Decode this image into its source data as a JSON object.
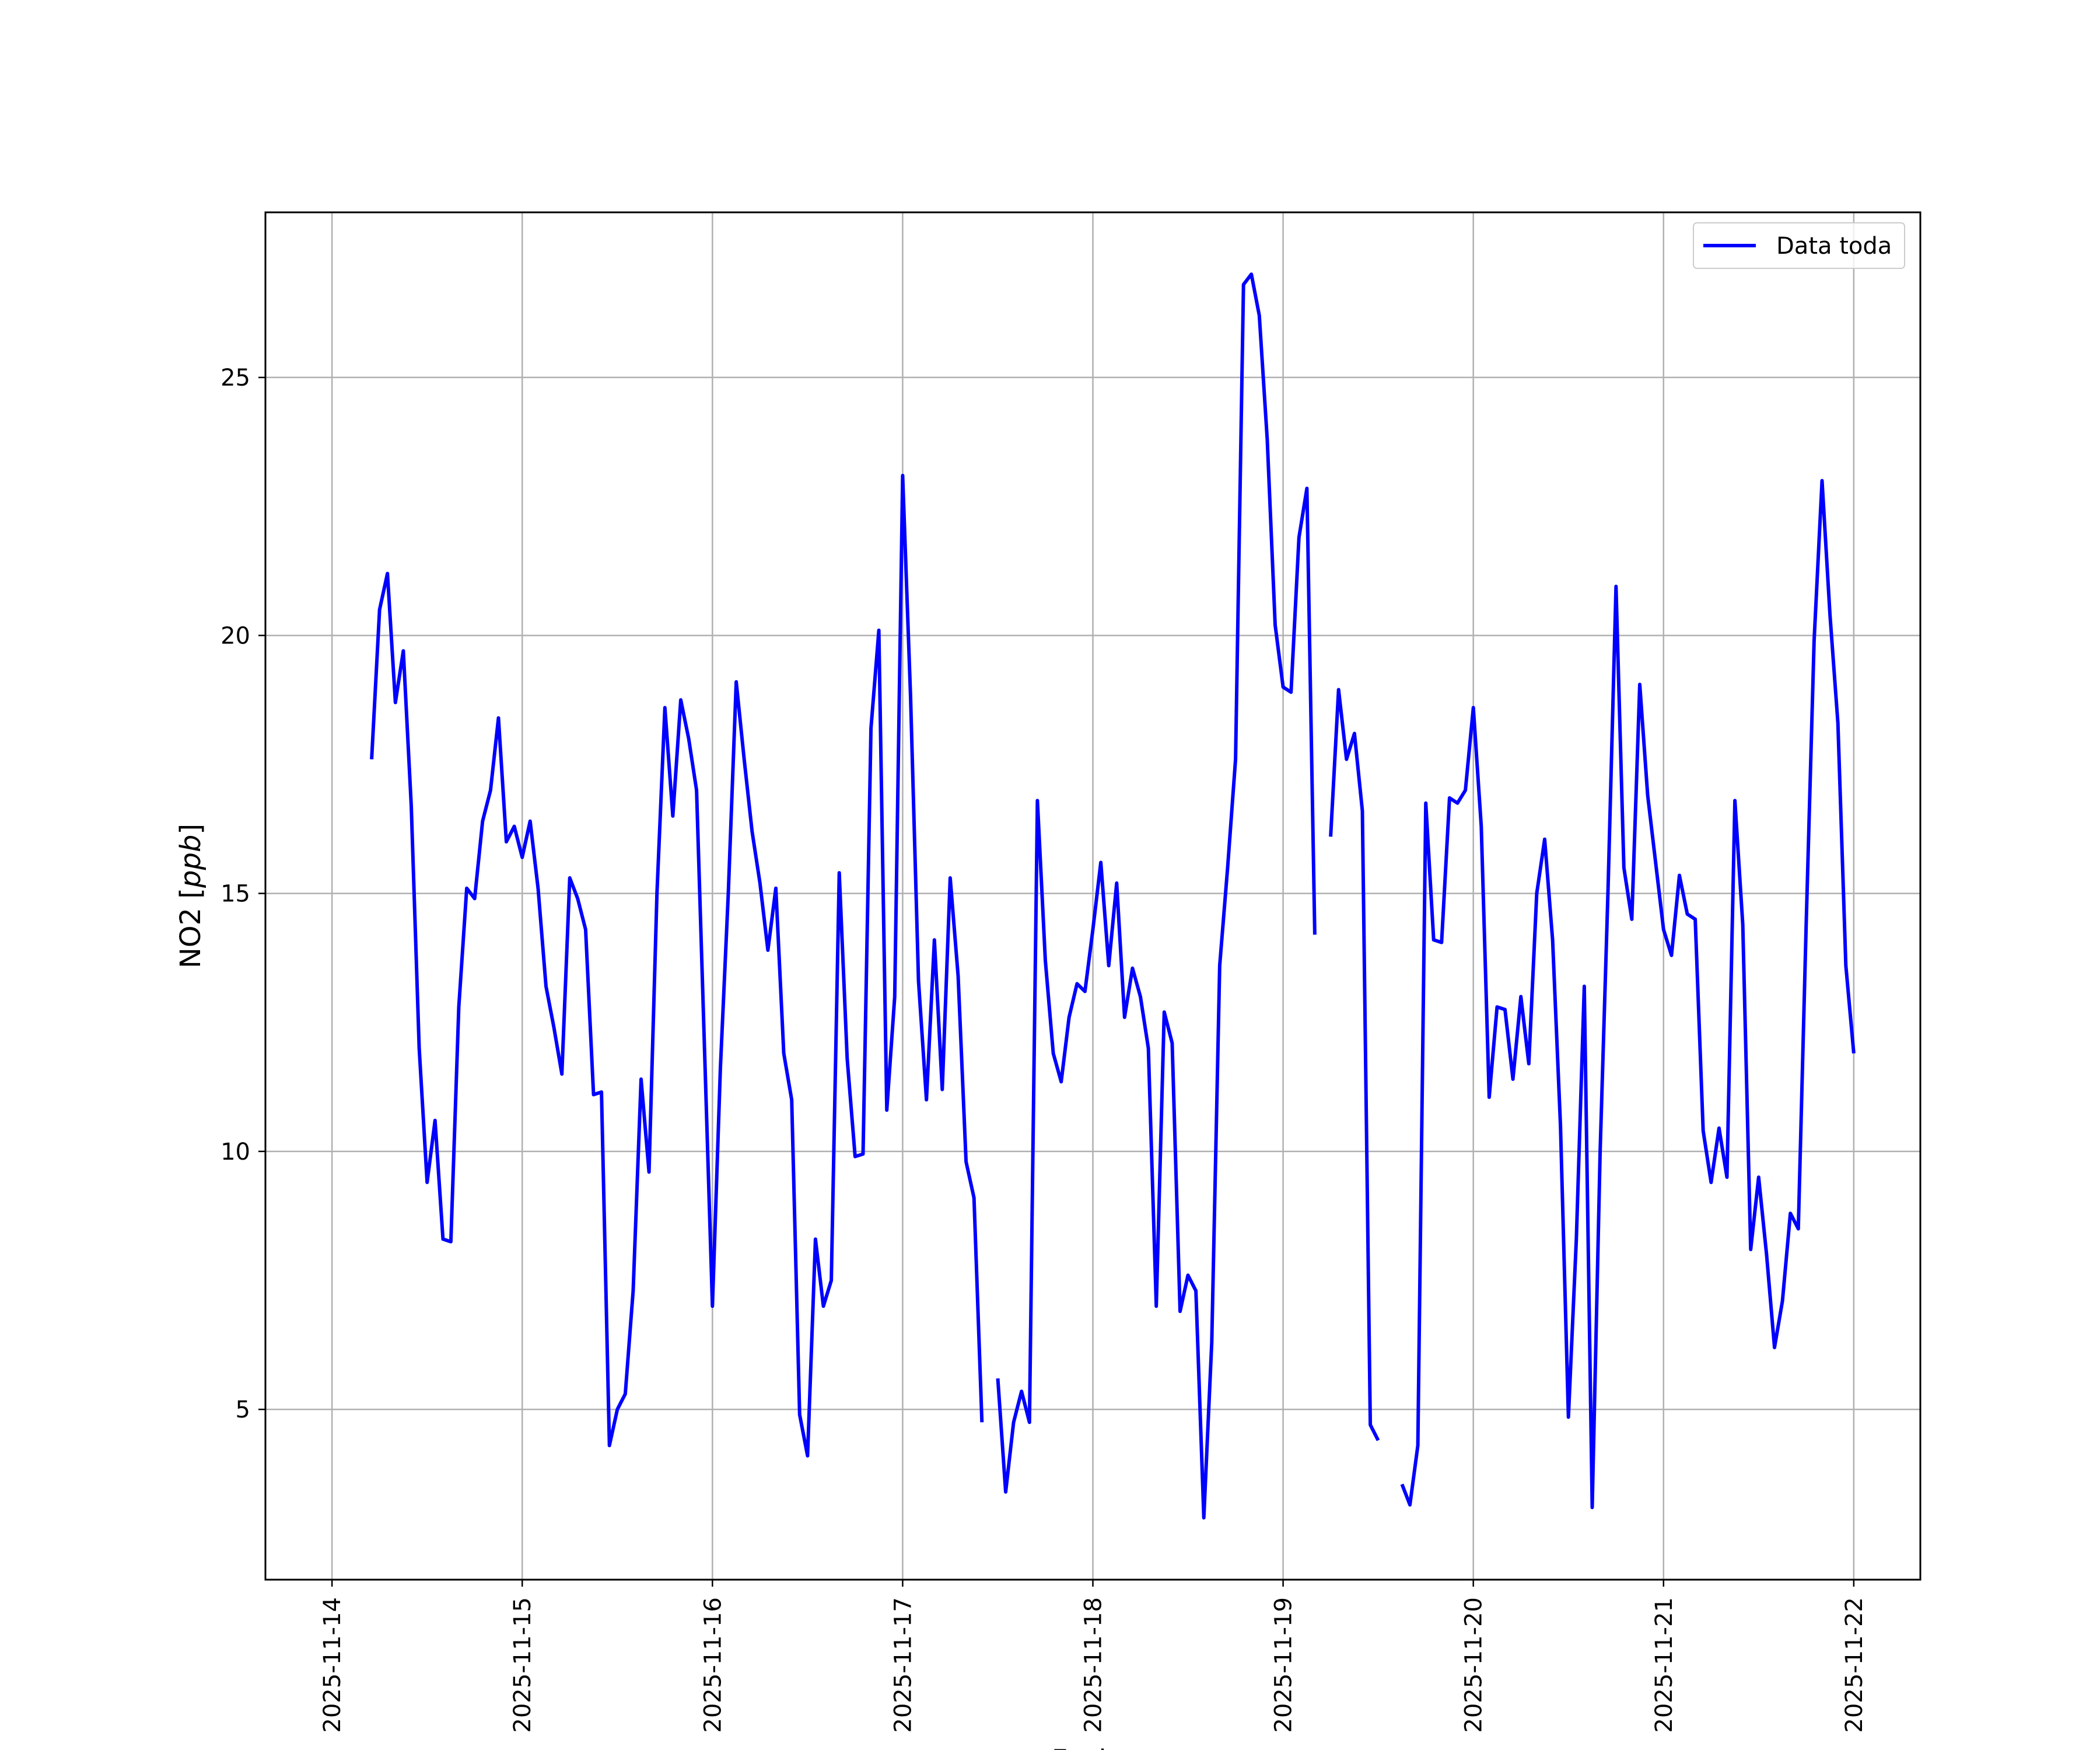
{
  "chart_data": {
    "type": "line",
    "xlabel": "Fecha",
    "ylabel_text": "NO2 [",
    "ylabel_unit": "ppb",
    "ylabel_close": "]",
    "x_ticks": [
      "2025-11-14",
      "2025-11-15",
      "2025-11-16",
      "2025-11-17",
      "2025-11-18",
      "2025-11-19",
      "2025-11-20",
      "2025-11-21",
      "2025-11-22"
    ],
    "y_ticks": [
      5,
      10,
      15,
      20,
      25
    ],
    "xlim": [
      "2025-11-13T15:36",
      "2025-11-22T08:24"
    ],
    "ylim": [
      1.7,
      28.2
    ],
    "grid": true,
    "legend_position": "top-right",
    "color": "#0000ff",
    "series": [
      {
        "name": "Data toda",
        "points": [
          [
            "2025-11-14T05:00",
            17.6
          ],
          [
            "2025-11-14T06:00",
            20.5
          ],
          [
            "2025-11-14T07:00",
            21.2
          ],
          [
            "2025-11-14T08:00",
            18.7
          ],
          [
            "2025-11-14T09:00",
            19.7
          ],
          [
            "2025-11-14T10:00",
            16.7
          ],
          [
            "2025-11-14T11:00",
            12.0
          ],
          [
            "2025-11-14T12:00",
            9.4
          ],
          [
            "2025-11-14T13:00",
            10.6
          ],
          [
            "2025-11-14T14:00",
            8.3
          ],
          [
            "2025-11-14T15:00",
            8.25
          ],
          [
            "2025-11-14T16:00",
            12.8
          ],
          [
            "2025-11-14T17:00",
            15.1
          ],
          [
            "2025-11-14T18:00",
            14.9
          ],
          [
            "2025-11-14T19:00",
            16.4
          ],
          [
            "2025-11-14T20:00",
            17.0
          ],
          [
            "2025-11-14T21:00",
            18.4
          ],
          [
            "2025-11-14T22:00",
            16.0
          ],
          [
            "2025-11-14T23:00",
            16.3
          ],
          [
            "2025-11-15T00:00",
            15.7
          ],
          [
            "2025-11-15T01:00",
            16.4
          ],
          [
            "2025-11-15T02:00",
            15.1
          ],
          [
            "2025-11-15T03:00",
            13.2
          ],
          [
            "2025-11-15T04:00",
            12.4
          ],
          [
            "2025-11-15T05:00",
            11.5
          ],
          [
            "2025-11-15T06:00",
            15.3
          ],
          [
            "2025-11-15T07:00",
            14.9
          ],
          [
            "2025-11-15T08:00",
            14.3
          ],
          [
            "2025-11-15T09:00",
            11.1
          ],
          [
            "2025-11-15T10:00",
            11.15
          ],
          [
            "2025-11-15T11:00",
            4.3
          ],
          [
            "2025-11-15T12:00",
            5.0
          ],
          [
            "2025-11-15T13:00",
            5.3
          ],
          [
            "2025-11-15T14:00",
            7.3
          ],
          [
            "2025-11-15T15:00",
            11.4
          ],
          [
            "2025-11-15T16:00",
            9.6
          ],
          [
            "2025-11-15T17:00",
            15.0
          ],
          [
            "2025-11-15T18:00",
            18.6
          ],
          [
            "2025-11-15T19:00",
            16.5
          ],
          [
            "2025-11-15T20:00",
            18.75
          ],
          [
            "2025-11-15T21:00",
            18.0
          ],
          [
            "2025-11-15T22:00",
            17.0
          ],
          [
            "2025-11-16T00:00",
            7.0
          ],
          [
            "2025-11-16T01:00",
            11.6
          ],
          [
            "2025-11-16T02:00",
            15.0
          ],
          [
            "2025-11-16T03:00",
            19.1
          ],
          [
            "2025-11-16T04:00",
            17.6
          ],
          [
            "2025-11-16T05:00",
            16.2
          ],
          [
            "2025-11-16T06:00",
            15.2
          ],
          [
            "2025-11-16T07:00",
            13.9
          ],
          [
            "2025-11-16T08:00",
            15.1
          ],
          [
            "2025-11-16T09:00",
            11.9
          ],
          [
            "2025-11-16T10:00",
            11.0
          ],
          [
            "2025-11-16T11:00",
            4.9
          ],
          [
            "2025-11-16T12:00",
            4.1
          ],
          [
            "2025-11-16T13:00",
            8.3
          ],
          [
            "2025-11-16T14:00",
            7.0
          ],
          [
            "2025-11-16T15:00",
            7.5
          ],
          [
            "2025-11-16T16:00",
            15.4
          ],
          [
            "2025-11-16T17:00",
            11.8
          ],
          [
            "2025-11-16T18:00",
            9.9
          ],
          [
            "2025-11-16T19:00",
            9.95
          ],
          [
            "2025-11-16T20:00",
            18.2
          ],
          [
            "2025-11-16T21:00",
            20.1
          ],
          [
            "2025-11-16T22:00",
            10.8
          ],
          [
            "2025-11-16T23:00",
            13.0
          ],
          [
            "2025-11-17T00:00",
            23.1
          ],
          [
            "2025-11-17T01:00",
            18.8
          ],
          [
            "2025-11-17T02:00",
            13.3
          ],
          [
            "2025-11-17T03:00",
            11.0
          ],
          [
            "2025-11-17T04:00",
            14.1
          ],
          [
            "2025-11-17T05:00",
            11.2
          ],
          [
            "2025-11-17T06:00",
            15.3
          ],
          [
            "2025-11-17T07:00",
            13.4
          ],
          [
            "2025-11-17T08:00",
            9.8
          ],
          [
            "2025-11-17T09:00",
            9.1
          ],
          [
            "2025-11-17T10:00",
            4.75
          ],
          null,
          [
            "2025-11-17T12:00",
            5.6
          ],
          [
            "2025-11-17T13:00",
            3.4
          ],
          [
            "2025-11-17T14:00",
            4.75
          ],
          [
            "2025-11-17T15:00",
            5.35
          ],
          [
            "2025-11-17T16:00",
            4.75
          ],
          [
            "2025-11-17T17:00",
            16.8
          ],
          [
            "2025-11-17T18:00",
            13.7
          ],
          [
            "2025-11-17T19:00",
            11.9
          ],
          [
            "2025-11-17T20:00",
            11.35
          ],
          [
            "2025-11-17T21:00",
            12.6
          ],
          [
            "2025-11-17T22:00",
            13.25
          ],
          [
            "2025-11-17T23:00",
            13.1
          ],
          [
            "2025-11-18T00:00",
            14.3
          ],
          [
            "2025-11-18T01:00",
            15.6
          ],
          [
            "2025-11-18T02:00",
            13.6
          ],
          [
            "2025-11-18T03:00",
            15.2
          ],
          [
            "2025-11-18T04:00",
            12.6
          ],
          [
            "2025-11-18T05:00",
            13.55
          ],
          [
            "2025-11-18T06:00",
            13.0
          ],
          [
            "2025-11-18T07:00",
            12.0
          ],
          [
            "2025-11-18T08:00",
            7.0
          ],
          [
            "2025-11-18T09:00",
            12.7
          ],
          [
            "2025-11-18T10:00",
            12.1
          ],
          [
            "2025-11-18T11:00",
            6.9
          ],
          [
            "2025-11-18T12:00",
            7.6
          ],
          [
            "2025-11-18T13:00",
            7.3
          ],
          [
            "2025-11-18T14:00",
            2.9
          ],
          [
            "2025-11-18T15:00",
            6.3
          ],
          [
            "2025-11-18T16:00",
            13.6
          ],
          [
            "2025-11-18T17:00",
            15.5
          ],
          [
            "2025-11-18T18:00",
            17.6
          ],
          [
            "2025-11-18T19:00",
            26.8
          ],
          [
            "2025-11-18T20:00",
            27.0
          ],
          [
            "2025-11-18T21:00",
            26.2
          ],
          [
            "2025-11-18T22:00",
            23.8
          ],
          [
            "2025-11-18T23:00",
            20.2
          ],
          [
            "2025-11-19T00:00",
            19.0
          ],
          [
            "2025-11-19T01:00",
            18.9
          ],
          [
            "2025-11-19T02:00",
            21.9
          ],
          [
            "2025-11-19T03:00",
            22.85
          ],
          [
            "2025-11-19T04:00",
            14.2
          ],
          null,
          [
            "2025-11-19T06:00",
            16.1
          ],
          [
            "2025-11-19T07:00",
            18.95
          ],
          [
            "2025-11-19T08:00",
            17.6
          ],
          [
            "2025-11-19T09:00",
            18.1
          ],
          [
            "2025-11-19T10:00",
            16.6
          ],
          [
            "2025-11-19T11:00",
            4.7
          ],
          [
            "2025-11-19T12:00",
            4.4
          ],
          null,
          [
            "2025-11-19T15:00",
            3.55
          ],
          [
            "2025-11-19T16:00",
            3.15
          ],
          [
            "2025-11-19T17:00",
            4.3
          ],
          [
            "2025-11-19T18:00",
            16.75
          ],
          [
            "2025-11-19T19:00",
            14.1
          ],
          [
            "2025-11-19T20:00",
            14.05
          ],
          [
            "2025-11-19T21:00",
            16.85
          ],
          [
            "2025-11-19T22:00",
            16.75
          ],
          [
            "2025-11-19T23:00",
            17.0
          ],
          [
            "2025-11-20T00:00",
            18.6
          ],
          [
            "2025-11-20T01:00",
            16.3
          ],
          [
            "2025-11-20T02:00",
            11.05
          ],
          [
            "2025-11-20T03:00",
            12.8
          ],
          [
            "2025-11-20T04:00",
            12.75
          ],
          [
            "2025-11-20T05:00",
            11.4
          ],
          [
            "2025-11-20T06:00",
            13.0
          ],
          [
            "2025-11-20T07:00",
            11.7
          ],
          [
            "2025-11-20T08:00",
            15.0
          ],
          [
            "2025-11-20T09:00",
            16.05
          ],
          [
            "2025-11-20T10:00",
            14.1
          ],
          [
            "2025-11-20T11:00",
            10.5
          ],
          [
            "2025-11-20T12:00",
            4.85
          ],
          [
            "2025-11-20T13:00",
            8.3
          ],
          [
            "2025-11-20T14:00",
            13.2
          ],
          [
            "2025-11-20T15:00",
            3.1
          ],
          [
            "2025-11-20T16:00",
            10.0
          ],
          [
            "2025-11-20T17:00",
            15.1
          ],
          [
            "2025-11-20T18:00",
            20.95
          ],
          [
            "2025-11-20T19:00",
            15.5
          ],
          [
            "2025-11-20T20:00",
            14.5
          ],
          [
            "2025-11-20T21:00",
            19.05
          ],
          [
            "2025-11-20T22:00",
            16.9
          ],
          [
            "2025-11-20T23:00",
            15.6
          ],
          [
            "2025-11-21T00:00",
            14.3
          ],
          [
            "2025-11-21T01:00",
            13.8
          ],
          [
            "2025-11-21T02:00",
            15.35
          ],
          [
            "2025-11-21T03:00",
            14.6
          ],
          [
            "2025-11-21T04:00",
            14.5
          ],
          [
            "2025-11-21T05:00",
            10.4
          ],
          [
            "2025-11-21T06:00",
            9.4
          ],
          [
            "2025-11-21T07:00",
            10.45
          ],
          [
            "2025-11-21T08:00",
            9.5
          ],
          [
            "2025-11-21T09:00",
            16.8
          ],
          [
            "2025-11-21T10:00",
            14.4
          ],
          [
            "2025-11-21T11:00",
            8.1
          ],
          [
            "2025-11-21T12:00",
            9.5
          ],
          [
            "2025-11-21T13:00",
            8.0
          ],
          [
            "2025-11-21T14:00",
            6.2
          ],
          [
            "2025-11-21T15:00",
            7.1
          ],
          [
            "2025-11-21T16:00",
            8.8
          ],
          [
            "2025-11-21T17:00",
            8.5
          ],
          [
            "2025-11-21T18:00",
            14.4
          ],
          [
            "2025-11-21T19:00",
            19.9
          ],
          [
            "2025-11-21T20:00",
            23.0
          ],
          [
            "2025-11-21T21:00",
            20.4
          ],
          [
            "2025-11-21T22:00",
            18.3
          ],
          [
            "2025-11-21T23:00",
            13.6
          ],
          [
            "2025-11-22T00:00",
            11.9
          ]
        ]
      }
    ]
  }
}
